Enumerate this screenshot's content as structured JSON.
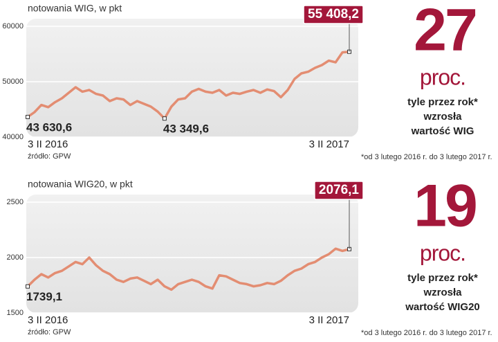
{
  "chart_data": [
    {
      "type": "line",
      "title": "notowania WIG, w pkt",
      "source": "źródło: GPW",
      "categories": [
        "3 II 2016",
        null,
        null,
        null,
        null,
        null,
        null,
        null,
        null,
        null,
        null,
        null,
        null,
        null,
        null,
        null,
        null,
        null,
        null,
        null,
        null,
        null,
        null,
        null,
        null,
        null,
        null,
        null,
        null,
        null,
        null,
        null,
        null,
        null,
        null,
        null,
        null,
        null,
        null,
        null,
        null,
        null,
        null,
        null,
        null,
        null,
        null,
        "3 II 2017"
      ],
      "values": [
        43630.6,
        44500,
        45800,
        45400,
        46300,
        47000,
        48000,
        49000,
        48200,
        48500,
        47800,
        47500,
        46500,
        47000,
        46800,
        45800,
        46500,
        46000,
        45500,
        44600,
        43349.6,
        45500,
        46800,
        47000,
        48200,
        48700,
        48200,
        48000,
        48500,
        47500,
        48000,
        47800,
        48200,
        48500,
        48000,
        48600,
        48300,
        47200,
        48500,
        50500,
        51500,
        51800,
        52500,
        53000,
        53800,
        53500,
        55300,
        55408.2
      ],
      "value_labels": [
        "43 630,6",
        null,
        null,
        null,
        null,
        null,
        null,
        null,
        null,
        null,
        null,
        null,
        null,
        null,
        null,
        null,
        null,
        null,
        null,
        null,
        "43 349,6",
        null,
        null,
        null,
        null,
        null,
        null,
        null,
        null,
        null,
        null,
        null,
        null,
        null,
        null,
        null,
        null,
        null,
        null,
        null,
        null,
        null,
        null,
        null,
        null,
        null,
        null,
        "55 408,2"
      ],
      "color": "#e38d72",
      "ylim": [
        40000,
        60000
      ],
      "yticks": [
        40000,
        50000,
        60000
      ],
      "grid": true,
      "highlight": {
        "value": 27,
        "unit": "proc.",
        "lines": [
          "tyle przez rok*",
          "wzrosła",
          "wartość WIG"
        ],
        "footnote": "*od 3 lutego 2016 r. do 3 lutego 2017 r."
      }
    },
    {
      "type": "line",
      "title": "notowania WIG20, w pkt",
      "source": "źródło: GPW",
      "categories": [
        "3 II 2016",
        null,
        null,
        null,
        null,
        null,
        null,
        null,
        null,
        null,
        null,
        null,
        null,
        null,
        null,
        null,
        null,
        null,
        null,
        null,
        null,
        null,
        null,
        null,
        null,
        null,
        null,
        null,
        null,
        null,
        null,
        null,
        null,
        null,
        null,
        null,
        null,
        null,
        null,
        null,
        null,
        null,
        null,
        null,
        null,
        null,
        null,
        "3 II 2017"
      ],
      "values": [
        1739.1,
        1800,
        1850,
        1820,
        1860,
        1880,
        1920,
        1960,
        1940,
        2000,
        1930,
        1880,
        1850,
        1800,
        1780,
        1810,
        1820,
        1790,
        1760,
        1800,
        1740,
        1710,
        1760,
        1780,
        1800,
        1780,
        1740,
        1720,
        1840,
        1830,
        1800,
        1770,
        1760,
        1740,
        1750,
        1770,
        1760,
        1790,
        1840,
        1880,
        1900,
        1940,
        1960,
        2000,
        2030,
        2080,
        2060,
        2076.1
      ],
      "value_labels": [
        "1739,1",
        null,
        null,
        null,
        null,
        null,
        null,
        null,
        null,
        null,
        null,
        null,
        null,
        null,
        null,
        null,
        null,
        null,
        null,
        null,
        null,
        null,
        null,
        null,
        null,
        null,
        null,
        null,
        null,
        null,
        null,
        null,
        null,
        null,
        null,
        null,
        null,
        null,
        null,
        null,
        null,
        null,
        null,
        null,
        null,
        null,
        null,
        "2076,1"
      ],
      "color": "#e38d72",
      "ylim": [
        1500,
        2500
      ],
      "yticks": [
        1500,
        2000,
        2500
      ],
      "grid": true,
      "highlight": {
        "value": 19,
        "unit": "proc.",
        "lines": [
          "tyle przez rok*",
          "wzrosła",
          "wartość WIG20"
        ],
        "footnote": "*od 3 lutego 2016 r. do 3 lutego 2017 r."
      }
    }
  ]
}
